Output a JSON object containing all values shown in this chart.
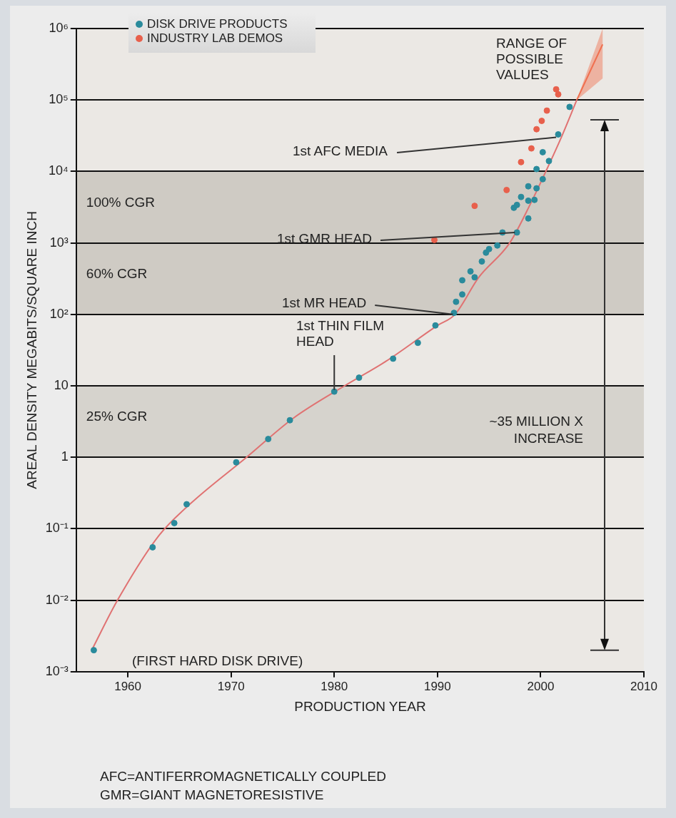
{
  "chart_data": {
    "type": "scatter",
    "xlabel": "PRODUCTION YEAR",
    "ylabel": "AREAL DENSITY MEGABITS/SQUARE INCH",
    "xlim": [
      1955,
      2010
    ],
    "xticks": [
      1960,
      1970,
      1980,
      1990,
      2000,
      2010
    ],
    "ylim": [
      0.001,
      1000000
    ],
    "yticks": [
      {
        "value": 0.001,
        "label": "10⁻³"
      },
      {
        "value": 0.01,
        "label": "10⁻²"
      },
      {
        "value": 0.1,
        "label": "10⁻¹"
      },
      1,
      10,
      {
        "value": 100,
        "label": "10²"
      },
      {
        "value": 1000,
        "label": "10³"
      },
      {
        "value": 10000,
        "label": "10⁴"
      },
      {
        "value": 100000,
        "label": "10⁵"
      },
      {
        "value": 1000000,
        "label": "10⁶"
      }
    ],
    "log": "y",
    "grid": "y",
    "legend": "top left",
    "marker": "circle",
    "bands": [
      {
        "axis": "y",
        "from": 1000,
        "to": 10000,
        "label": "100% CGR",
        "color": "#cfcbc4"
      },
      {
        "axis": "y",
        "from": 100,
        "to": 1000,
        "label": "60% CGR",
        "color": "#cfcbc4"
      },
      {
        "axis": "y",
        "from": 1,
        "to": 10,
        "label": "25% CGR",
        "color": "#d6d3cd"
      }
    ],
    "series": [
      {
        "name": "DISK DRIVE PRODUCTS",
        "color": "#2a8b9c",
        "x": [
          1956.7,
          1962.4,
          1964.5,
          1965.7,
          1970.5,
          1973.6,
          1975.7,
          1980,
          1982.4,
          1985.7,
          1988.1,
          1989.8,
          1991.6,
          1991.8,
          1992.4,
          1992.4,
          1993.2,
          1993.6,
          1994.3,
          1994.7,
          1995,
          1995.8,
          1996.3,
          1997.7,
          1997.4,
          1997.7,
          1998.1,
          1998.8,
          1998.8,
          1999.4,
          1998.8,
          1999.6,
          2000.2,
          1999.6,
          2000.2,
          2000.8,
          2001.7,
          2002.8
        ],
        "values": [
          0.002,
          0.055,
          0.12,
          0.22,
          0.85,
          1.8,
          3.3,
          8.3,
          13,
          24,
          40,
          70,
          105,
          150,
          190,
          300,
          400,
          330,
          550,
          730,
          820,
          920,
          1400,
          1400,
          3100,
          3400,
          4400,
          6200,
          3900,
          4000,
          2200,
          5800,
          7800,
          10800,
          18600,
          14000,
          33000,
          80000
        ]
      },
      {
        "name": "INDUSTRY LAB DEMOS",
        "color": "#e8604c",
        "x": [
          1989.7,
          1993.6,
          1996.7,
          1998.1,
          1999.1,
          1999.6,
          2000.1,
          2000.6,
          2001.5,
          2001.7
        ],
        "values": [
          1100,
          3300,
          5500,
          13500,
          21000,
          39000,
          51000,
          71000,
          141000,
          120000
        ]
      },
      {
        "type": "line",
        "color": "#e07272",
        "marker": "none",
        "x": [
          1956.5,
          1959,
          1963,
          1966,
          1971.5,
          1976,
          1981,
          1985,
          1990,
          1991.7,
          1994,
          1997,
          1999,
          2000.5,
          2002,
          2003.5
        ],
        "values": [
          0.002,
          0.01,
          0.08,
          0.22,
          1,
          3.5,
          10,
          22,
          70,
          100,
          330,
          1000,
          3500,
          10000,
          30000,
          100000
        ]
      },
      {
        "type": "line",
        "color": "#f07050",
        "marker": "none",
        "x": [
          2003.5,
          2006
        ],
        "values": [
          100000,
          600000
        ],
        "lower": [
          100000,
          200000
        ],
        "upper": [
          100000,
          1000000
        ]
      }
    ],
    "annotations": [
      {
        "text": "RANGE OF POSSIBLE VALUES",
        "x": 2004,
        "y": 150000
      },
      {
        "text": "1st AFC MEDIA",
        "x": 2001.5,
        "y": 30000
      },
      {
        "text": "1st GMR HEAD",
        "x": 1997.5,
        "y": 1400
      },
      {
        "text": "1st MR HEAD",
        "x": 1991.5,
        "y": 100
      },
      {
        "text": "1st THIN FILM HEAD",
        "x": 1980,
        "y": 8
      },
      {
        "text": "(FIRST HARD DISK DRIVE)",
        "x": 1956.7,
        "y": 0.002
      },
      "~35 MILLION X INCREASE",
      "AFC=ANTIFERROMAGNETICALLY COUPLED",
      "GMR=GIANT MAGNETORESISTIVE"
    ]
  }
}
